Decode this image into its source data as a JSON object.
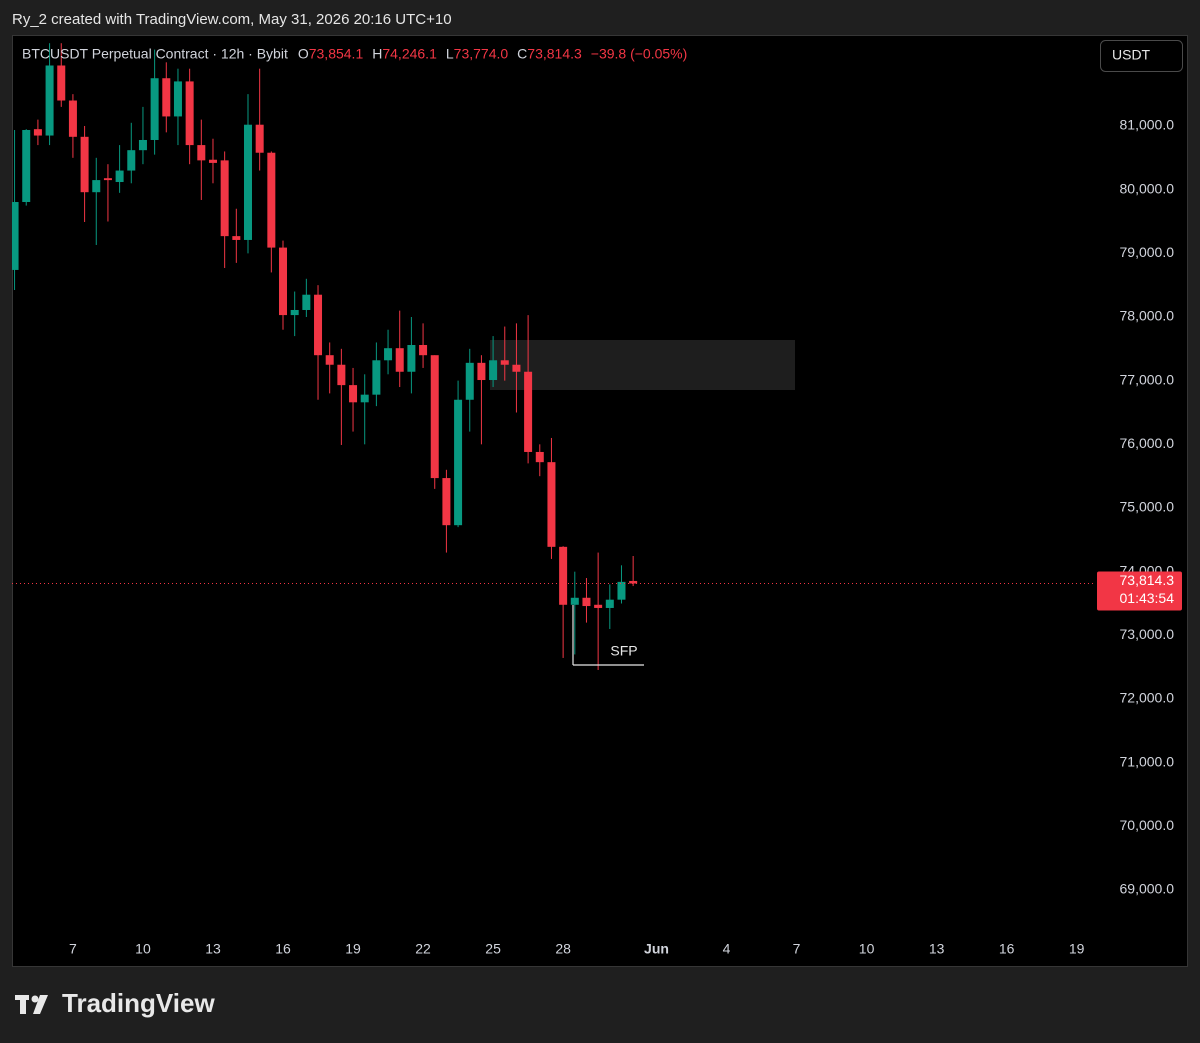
{
  "credit": "Ry_2 created with TradingView.com, May 31, 2026 20:16 UTC+10",
  "brand": "TradingView",
  "currency_button": "USDT",
  "chart_data": {
    "type": "candlestick",
    "title": "BTCUSDT Perpetual Contract · 12h · Bybit",
    "legend_ohlc": [
      {
        "key": "O",
        "value": "73,854.1"
      },
      {
        "key": "H",
        "value": "74,246.1"
      },
      {
        "key": "L",
        "value": "73,774.0"
      },
      {
        "key": "C",
        "value": "73,814.3"
      }
    ],
    "change": "−39.8 (−0.05%)",
    "up_color": "#089981",
    "down_color": "#f23645",
    "x": [
      4.5,
      5,
      5.5,
      6,
      6.5,
      7,
      7.5,
      8,
      8.5,
      9,
      9.5,
      10,
      10.5,
      11,
      11.5,
      12,
      12.5,
      13,
      13.5,
      14,
      14.5,
      15,
      15.5,
      16,
      16.5,
      17,
      17.5,
      18,
      18.5,
      19,
      19.5,
      20,
      20.5,
      21,
      21.5,
      22,
      22.5,
      23,
      23.5,
      24,
      24.5,
      25,
      25.5,
      26,
      26.5,
      27,
      27.5,
      28,
      28.5,
      29,
      29.5,
      30,
      30.5,
      31
    ],
    "open": [
      78739,
      79806,
      80950,
      80850,
      81950,
      81400,
      80830,
      79960,
      80180,
      80120,
      80300,
      80620,
      80780,
      81750,
      81150,
      81700,
      80700,
      80470,
      80460,
      79270,
      79210,
      81020,
      80580,
      79090,
      78030,
      78110,
      78350,
      77400,
      77250,
      76930,
      76660,
      76780,
      77320,
      77510,
      77140,
      77560,
      77400,
      75470,
      74730,
      76700,
      77280,
      77010,
      77320,
      77250,
      77140,
      75880,
      75720,
      74390,
      73480,
      73590,
      73480,
      73430,
      73560,
      73854.1
    ],
    "high": [
      80937,
      80950,
      81100,
      82300,
      82300,
      81500,
      81000,
      80500,
      80400,
      80700,
      81050,
      81300,
      82200,
      82000,
      81900,
      81900,
      81100,
      80800,
      80600,
      79700,
      81500,
      81900,
      80600,
      79200,
      78400,
      78600,
      78500,
      77600,
      77500,
      77200,
      77100,
      77600,
      77800,
      78100,
      78000,
      77900,
      77400,
      75600,
      77000,
      77500,
      77400,
      77700,
      77850,
      77900,
      78030,
      76000,
      76100,
      74400,
      74000,
      73900,
      74300,
      73800,
      74100,
      74246.1
    ],
    "low": [
      78424,
      79750,
      80700,
      80700,
      81300,
      80500,
      79492,
      79131,
      79500,
      79950,
      80100,
      80400,
      80550,
      80900,
      80700,
      80400,
      79838,
      80100,
      78770,
      78850,
      79000,
      80300,
      78700,
      77800,
      77700,
      78000,
      76700,
      76800,
      75990,
      76200,
      76000,
      76600,
      77100,
      76900,
      76800,
      77200,
      75300,
      74300,
      74700,
      76200,
      76000,
      76900,
      77000,
      76500,
      75700,
      75500,
      74200,
      72645,
      72700,
      73200,
      72456,
      73100,
      73500,
      73774.0
    ],
    "close": [
      79806,
      80937,
      80850,
      81950,
      81400,
      80830,
      79960,
      80150,
      80150,
      80300,
      80620,
      80780,
      81750,
      81150,
      81700,
      80700,
      80460,
      80420,
      79270,
      79210,
      81020,
      80580,
      79090,
      78030,
      78110,
      78350,
      77400,
      77250,
      76930,
      76660,
      76780,
      77320,
      77510,
      77140,
      77560,
      77400,
      75470,
      74730,
      76700,
      77280,
      77010,
      77320,
      77250,
      77140,
      75880,
      75720,
      74390,
      73480,
      73590,
      73460,
      73430,
      73560,
      73840,
      73814.3
    ],
    "xlim": [
      4.39,
      50.7
    ],
    "ylim": [
      68372,
      82429
    ],
    "xticks": [
      7,
      10,
      13,
      16,
      19,
      22,
      25,
      28,
      {
        "value": 32,
        "label": "Jun"
      },
      {
        "value": 35,
        "label": "4"
      },
      {
        "value": 38,
        "label": "7"
      },
      {
        "value": 41,
        "label": "10"
      },
      {
        "value": 44,
        "label": "13"
      },
      {
        "value": 47,
        "label": "16"
      },
      {
        "value": 50,
        "label": "19"
      }
    ],
    "yticks": [
      {
        "value": 69000,
        "label": "69,000.0"
      },
      {
        "value": 70000,
        "label": "70,000.0"
      },
      {
        "value": 71000,
        "label": "71,000.0"
      },
      {
        "value": 72000,
        "label": "72,000.0"
      },
      {
        "value": 73000,
        "label": "73,000.0"
      },
      {
        "value": 74000,
        "label": "74,000.0"
      },
      {
        "value": 75000,
        "label": "75,000.0"
      },
      {
        "value": 76000,
        "label": "76,000.0"
      },
      {
        "value": 77000,
        "label": "77,000.0"
      },
      {
        "value": 78000,
        "label": "78,000.0"
      },
      {
        "value": 79000,
        "label": "79,000.0"
      },
      {
        "value": 80000,
        "label": "80,000.0"
      },
      {
        "value": 81000,
        "label": "81,000.0"
      }
    ],
    "last_price": {
      "value": 73814.3,
      "label": "73,814.3"
    },
    "countdown": "01:43:54",
    "annotation": "SFP"
  }
}
